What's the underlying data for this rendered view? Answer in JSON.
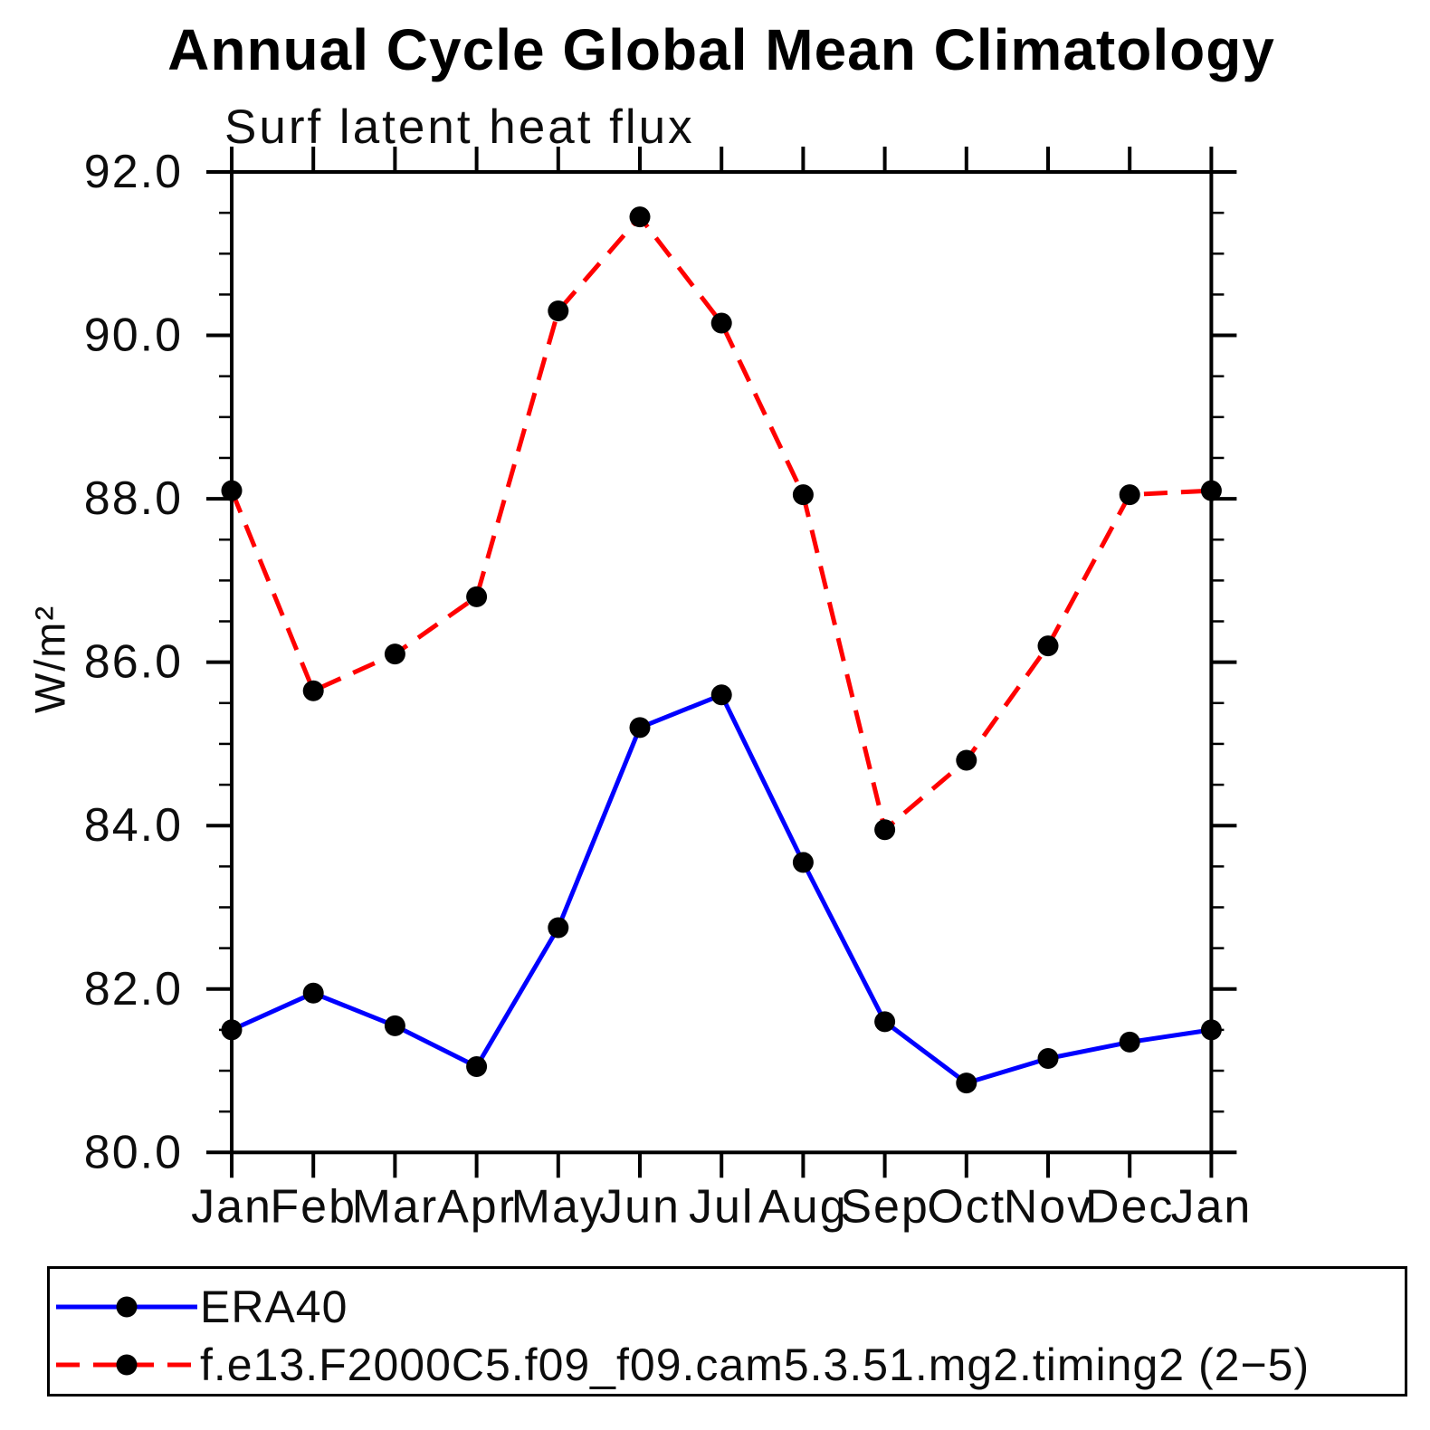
{
  "chart_data": {
    "type": "line",
    "title": "Annual Cycle Global Mean Climatology",
    "subtitle": "Surf latent heat flux",
    "ylabel": "W/m²",
    "xlabel": "",
    "categories": [
      "Jan",
      "Feb",
      "Mar",
      "Apr",
      "May",
      "Jun",
      "Jul",
      "Aug",
      "Sep",
      "Oct",
      "Nov",
      "Dec",
      "Jan"
    ],
    "ylim": [
      80.0,
      92.0
    ],
    "ytick_interval": 2.0,
    "ytick_labels": [
      "92.0",
      "90.0",
      "88.0",
      "86.0",
      "84.0",
      "82.0",
      "80.0"
    ],
    "yminor_interval": 0.5,
    "grid": false,
    "legend_position": "bottom-left-box",
    "axis_color": "#000000",
    "marker_color": "#000000",
    "series": [
      {
        "name": "ERA40",
        "color": "#0000ff",
        "line_style": "solid",
        "marker": "circle",
        "values": [
          81.5,
          81.95,
          81.55,
          81.05,
          82.75,
          85.2,
          85.6,
          83.55,
          81.6,
          80.85,
          81.15,
          81.35,
          81.5
        ]
      },
      {
        "name": "f.e13.F2000C5.f09_f09.cam5.3.51.mg2.timing2 (2−5)",
        "color": "#ff0000",
        "line_style": "dashed",
        "marker": "circle",
        "values": [
          88.1,
          85.65,
          86.1,
          86.8,
          90.3,
          91.45,
          90.15,
          88.05,
          83.95,
          84.8,
          86.2,
          88.05,
          88.1
        ]
      }
    ]
  }
}
